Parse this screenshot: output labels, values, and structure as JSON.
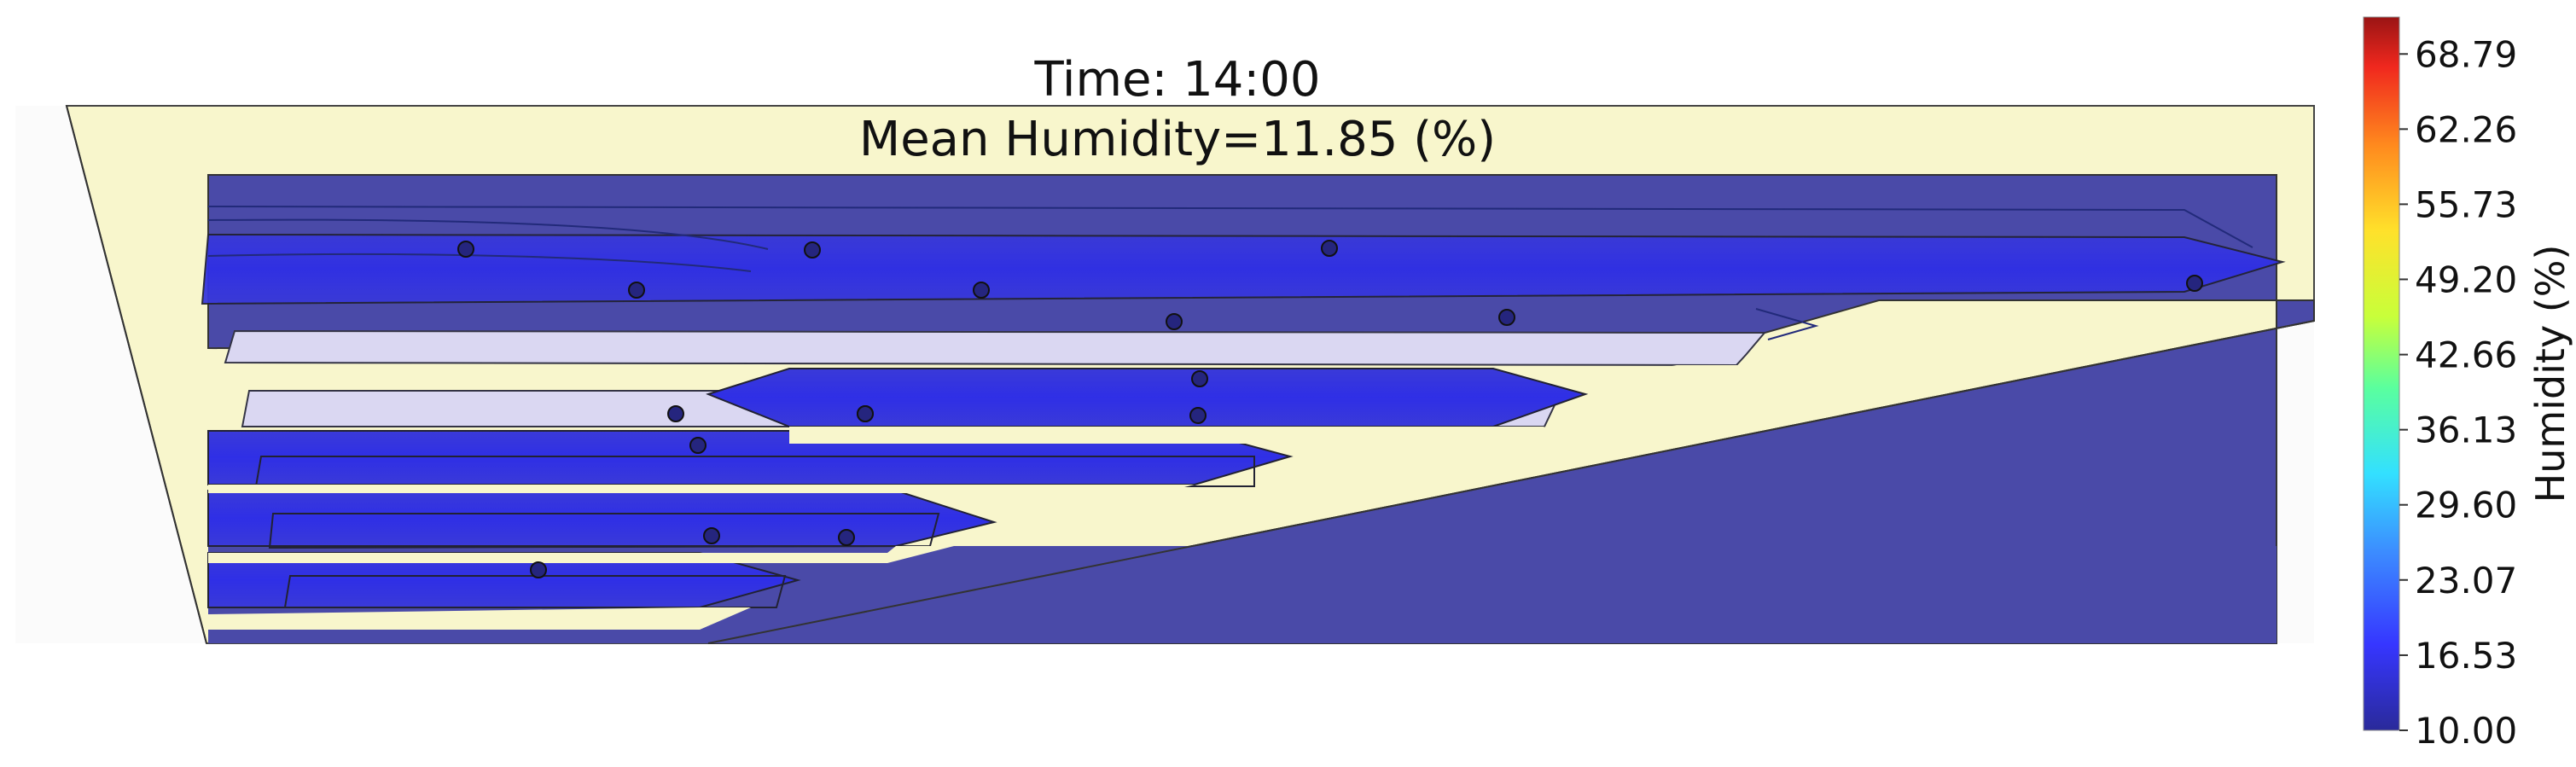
{
  "chart_data": {
    "type": "heatmap",
    "title": "Time: 14:00",
    "subtitle": "Mean Humidity=11.85 (%)",
    "mean_humidity": 11.85,
    "colorbar": {
      "label": "Humidity (%)",
      "range": [
        10.0,
        72.0
      ],
      "ticks": [
        "10.00",
        "16.53",
        "23.07",
        "29.60",
        "36.13",
        "42.66",
        "49.20",
        "55.73",
        "62.26",
        "68.79"
      ],
      "colormap": "jet",
      "colors": [
        "#2a2a9a",
        "#3636ff",
        "#3c8cff",
        "#33e0ff",
        "#5aff9e",
        "#c8ff3a",
        "#ffe12b",
        "#ff8a1e",
        "#f0281e",
        "#9a1414"
      ]
    },
    "sensors": [
      {
        "id": 1,
        "humidity": 11.0
      },
      {
        "id": 2,
        "humidity": 11.0
      },
      {
        "id": 3,
        "humidity": 11.0
      },
      {
        "id": 4,
        "humidity": 11.0
      },
      {
        "id": 5,
        "humidity": 11.0
      },
      {
        "id": 6,
        "humidity": 11.0
      },
      {
        "id": 7,
        "humidity": 11.0
      },
      {
        "id": 8,
        "humidity": 11.0
      },
      {
        "id": 9,
        "humidity": 11.0
      },
      {
        "id": 10,
        "humidity": 11.0
      },
      {
        "id": 11,
        "humidity": 20.0
      },
      {
        "id": 12,
        "humidity": 11.0
      },
      {
        "id": 13,
        "humidity": 11.0
      },
      {
        "id": 14,
        "humidity": 11.0
      },
      {
        "id": 15,
        "humidity": 11.0
      },
      {
        "id": 16,
        "humidity": 11.0
      },
      {
        "id": 17,
        "humidity": 11.0
      }
    ]
  }
}
